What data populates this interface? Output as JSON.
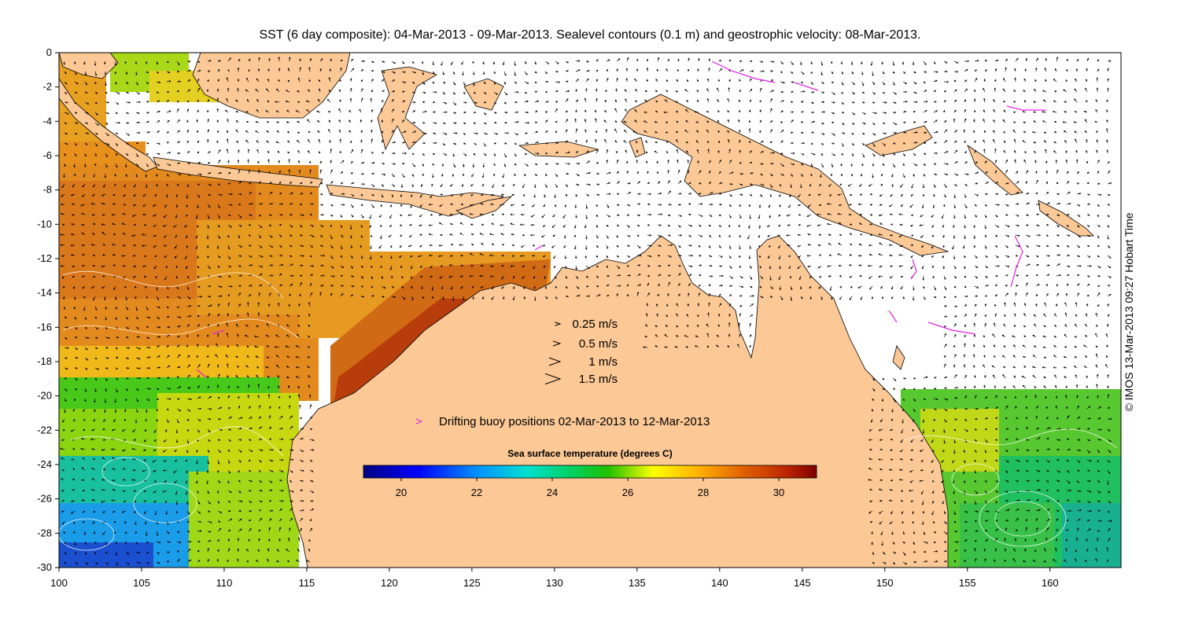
{
  "title": "SST (6 day composite): 04-Mar-2013 - 09-Mar-2013. Sealevel contours (0.1 m) and geostrophic velocity: 08-Mar-2013.",
  "credit": "© IMOS 13-Mar-2013 09:27 Hobart Time",
  "x_ticks": [
    "100",
    "105",
    "110",
    "115",
    "120",
    "125",
    "130",
    "135",
    "140",
    "145",
    "150",
    "155",
    "160"
  ],
  "y_ticks": [
    "0",
    "-2",
    "-4",
    "-6",
    "-8",
    "-10",
    "-12",
    "-14",
    "-16",
    "-18",
    "-20",
    "-22",
    "-24",
    "-26",
    "-28",
    "-30"
  ],
  "velocity_legend": [
    {
      "label": "0.25 m/s",
      "speed": 0.25
    },
    {
      "label": "0.5 m/s",
      "speed": 0.5
    },
    {
      "label": "1 m/s",
      "speed": 1
    },
    {
      "label": "1.5 m/s",
      "speed": 1.5
    }
  ],
  "buoy_legend": {
    "symbol": ">",
    "label": "Drifting buoy positions 02-Mar-2013 to 12-Mar-2013",
    "color": "#e020e0"
  },
  "colorbar": {
    "title": "Sea surface temperature (degrees C)",
    "min": 19,
    "max": 31,
    "ticks": [
      "20",
      "22",
      "24",
      "26",
      "28",
      "30"
    ],
    "colors": [
      "#00007f",
      "#0000ff",
      "#007fff",
      "#00ffff",
      "#00e060",
      "#00c000",
      "#ffff00",
      "#ffaa00",
      "#e06000",
      "#c03000",
      "#7f0000"
    ]
  },
  "colors": {
    "land": "#fbc896",
    "ocean_nodata": "#ffffff",
    "buoy": "#e020e0"
  }
}
